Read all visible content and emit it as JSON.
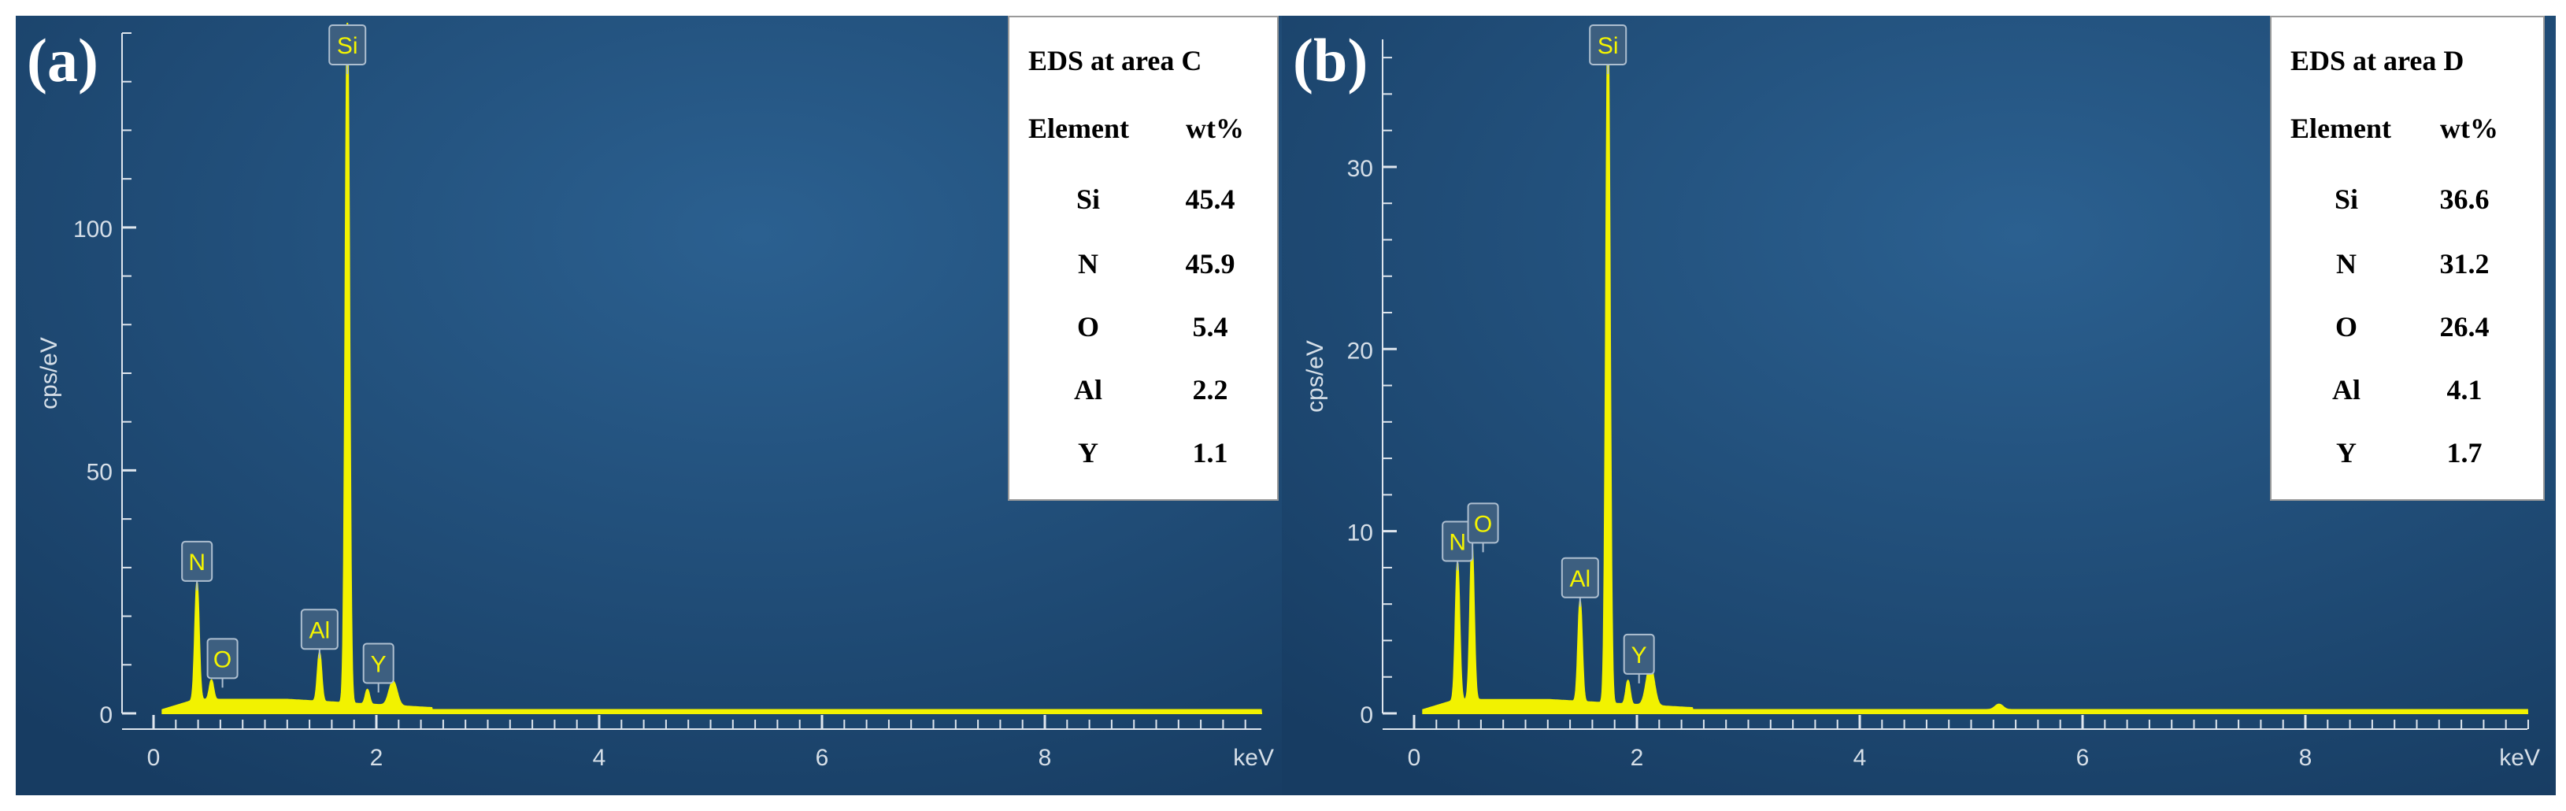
{
  "chart_data": [
    {
      "type": "line",
      "panel_label": "(a)",
      "xlabel": "keV",
      "ylabel": "cps/eV",
      "xlim": [
        0,
        10
      ],
      "ylim": [
        0,
        140
      ],
      "x_ticks": [
        0,
        2,
        4,
        6,
        8
      ],
      "y_ticks": [
        0,
        50,
        100
      ],
      "grid": false,
      "colors": {
        "background": "#22507c",
        "spectrum": "#f2f200",
        "axis": "#dfe6ee",
        "peak_label_box": "#3d5f80"
      },
      "spectrum_peaks": [
        {
          "element": "N",
          "energy": 0.39,
          "height": 24
        },
        {
          "element": "O",
          "energy": 0.52,
          "height": 4
        },
        {
          "element": "Al",
          "energy": 1.49,
          "height": 10
        },
        {
          "element": "Si",
          "energy": 1.74,
          "height": 140
        },
        {
          "element": "Y",
          "energy": 1.92,
          "height": 3
        },
        {
          "element": "",
          "energy": 2.15,
          "height": 5
        }
      ],
      "peak_labels": [
        {
          "text": "Si",
          "energy": 1.74
        },
        {
          "text": "N",
          "energy": 0.39
        },
        {
          "text": "O",
          "energy": 0.52
        },
        {
          "text": "Al",
          "energy": 1.49
        },
        {
          "text": "Y",
          "energy": 1.92
        }
      ],
      "legend_placement": "top-right",
      "table": {
        "title": "EDS at area C",
        "headers": [
          "Element",
          "wt%"
        ],
        "rows": [
          {
            "element": "Si",
            "wt": "45.4"
          },
          {
            "element": "N",
            "wt": "45.9"
          },
          {
            "element": "O",
            "wt": "5.4"
          },
          {
            "element": "Al",
            "wt": "2.2"
          },
          {
            "element": "Y",
            "wt": "1.1"
          }
        ]
      }
    },
    {
      "type": "line",
      "panel_label": "(b)",
      "xlabel": "keV",
      "ylabel": "cps/eV",
      "xlim": [
        0,
        10
      ],
      "ylim": [
        0,
        37
      ],
      "x_ticks": [
        0,
        2,
        4,
        6,
        8
      ],
      "y_ticks": [
        0,
        10,
        20,
        30
      ],
      "grid": false,
      "colors": {
        "background": "#22507c",
        "spectrum": "#f2f200",
        "axis": "#dfe6ee",
        "peak_label_box": "#3d5f80"
      },
      "spectrum_peaks": [
        {
          "element": "N",
          "energy": 0.39,
          "height": 7.5
        },
        {
          "element": "O",
          "energy": 0.52,
          "height": 8.5
        },
        {
          "element": "Al",
          "energy": 1.49,
          "height": 5.5
        },
        {
          "element": "Si",
          "energy": 1.74,
          "height": 37
        },
        {
          "element": "Y",
          "energy": 1.92,
          "height": 1.3
        },
        {
          "element": "",
          "energy": 2.12,
          "height": 2.2
        },
        {
          "element": "",
          "energy": 5.25,
          "height": 0.3
        }
      ],
      "peak_labels": [
        {
          "text": "Si",
          "energy": 1.74
        },
        {
          "text": "N",
          "energy": 0.39
        },
        {
          "text": "O",
          "energy": 0.52
        },
        {
          "text": "Al",
          "energy": 1.49
        },
        {
          "text": "Y",
          "energy": 1.92
        }
      ],
      "legend_placement": "top-right",
      "table": {
        "title": "EDS at area D",
        "headers": [
          "Element",
          "wt%"
        ],
        "rows": [
          {
            "element": "Si",
            "wt": "36.6"
          },
          {
            "element": "N",
            "wt": "31.2"
          },
          {
            "element": "O",
            "wt": "26.4"
          },
          {
            "element": "Al",
            "wt": "4.1"
          },
          {
            "element": "Y",
            "wt": "1.7"
          }
        ]
      }
    }
  ]
}
